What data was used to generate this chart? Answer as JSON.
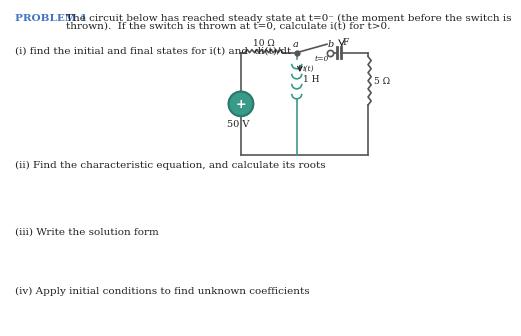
{
  "title_label": "Problem 1",
  "title_color": "#4472C4",
  "title_text1": "The circuit below has reached steady state at t=0⁻ (the moment before the switch is",
  "title_text2": "thrown).  If the switch is thrown at t=0, calculate i(t) for t>0.",
  "q1_text": "(i) find the initial and final states for i(t) and  di(t)/dt",
  "q2_text": "(ii) Find the characteristic equation, and calculate its roots",
  "q3_text": "(iii) Write the solution form",
  "q4_text": "(iv) Apply initial conditions to find unknown coefficients",
  "bg_color": "#ffffff",
  "text_color": "#222222",
  "circuit_color": "#555555",
  "teal_color": "#3a9a8a",
  "font_size": 7.5,
  "circuit": {
    "resistor1_label": "10 Ω",
    "resistor2_label": "5 Ω",
    "inductor_label": "1 H",
    "capacitor_label": "F",
    "source_label": "50 V",
    "node_a": "a",
    "node_b": "b",
    "switch_label": "t=0",
    "current_label": "i(t)"
  }
}
